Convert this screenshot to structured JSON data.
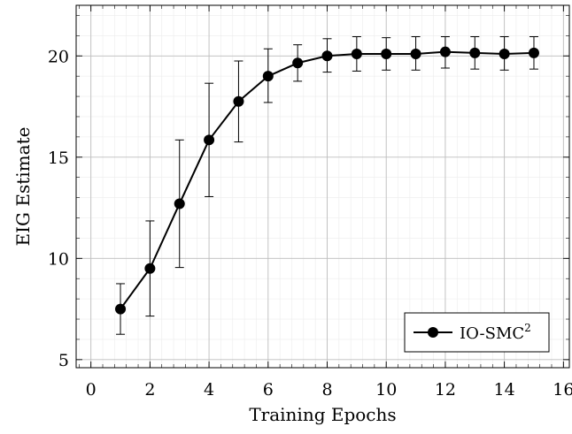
{
  "chart_data": {
    "type": "line",
    "xlabel": "Training Epochs",
    "ylabel": "EIG Estimate",
    "xlim": [
      -0.5,
      16.2
    ],
    "ylim": [
      4.6,
      22.5
    ],
    "xticks": [
      0,
      2,
      4,
      6,
      8,
      10,
      12,
      14,
      16
    ],
    "yticks": [
      5,
      10,
      15,
      20
    ],
    "x_minor_step": 0.4,
    "y_minor_step": 1,
    "grid": true,
    "legend_position": "bottom-right",
    "series": [
      {
        "name": "IO-SMC",
        "name_superscript": "2",
        "color": "#000000",
        "marker": "circle",
        "x": [
          1,
          2,
          3,
          4,
          5,
          6,
          7,
          8,
          9,
          10,
          11,
          12,
          13,
          14,
          15
        ],
        "y": [
          7.5,
          9.5,
          12.7,
          15.85,
          17.75,
          19.0,
          19.65,
          20.0,
          20.1,
          20.1,
          20.1,
          20.2,
          20.15,
          20.1,
          20.15
        ],
        "err_low": [
          6.25,
          7.15,
          9.55,
          13.05,
          15.75,
          17.7,
          18.75,
          19.2,
          19.25,
          19.3,
          19.3,
          19.4,
          19.35,
          19.3,
          19.35
        ],
        "err_high": [
          8.75,
          11.85,
          15.85,
          18.65,
          19.75,
          20.35,
          20.55,
          20.85,
          20.95,
          20.9,
          20.95,
          20.95,
          20.95,
          20.95,
          20.95
        ]
      }
    ]
  }
}
